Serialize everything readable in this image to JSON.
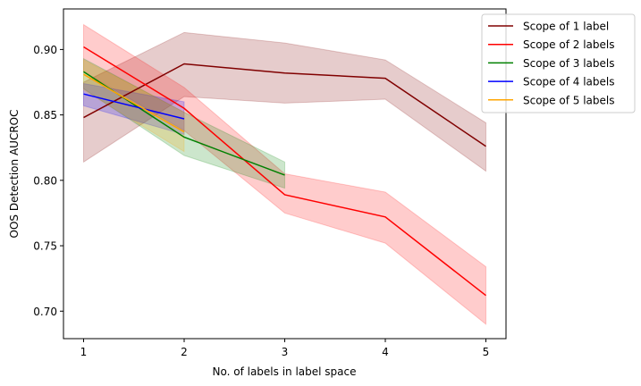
{
  "chart_data": {
    "type": "line",
    "title": "",
    "xlabel": "No. of labels in label space",
    "ylabel": "OOS Detection AUCROC",
    "xlim": [
      0.8,
      5.2
    ],
    "ylim": [
      0.679,
      0.931
    ],
    "xticks": [
      1,
      2,
      3,
      4,
      5
    ],
    "xtick_labels": [
      "1",
      "2",
      "3",
      "4",
      "5"
    ],
    "yticks": [
      0.7,
      0.75,
      0.8,
      0.85,
      0.9
    ],
    "ytick_labels": [
      "0.70",
      "0.75",
      "0.80",
      "0.85",
      "0.90"
    ],
    "grid": false,
    "legend_position": "upper-right-outside",
    "series": [
      {
        "name": "Scope of 1 label",
        "color": "#800000",
        "x": [
          1,
          2,
          3,
          4,
          5
        ],
        "values": [
          0.848,
          0.889,
          0.882,
          0.878,
          0.826
        ],
        "lower": [
          0.814,
          0.864,
          0.859,
          0.862,
          0.807
        ],
        "upper": [
          0.875,
          0.913,
          0.905,
          0.892,
          0.844
        ]
      },
      {
        "name": "Scope of 2 labels",
        "color": "#ff0000",
        "x": [
          1,
          2,
          3,
          4,
          5
        ],
        "values": [
          0.902,
          0.855,
          0.789,
          0.772,
          0.712
        ],
        "lower": [
          0.883,
          0.838,
          0.775,
          0.752,
          0.69
        ],
        "upper": [
          0.919,
          0.871,
          0.805,
          0.791,
          0.734
        ]
      },
      {
        "name": "Scope of 3 labels",
        "color": "#008000",
        "x": [
          1,
          2,
          3
        ],
        "values": [
          0.883,
          0.833,
          0.804
        ],
        "lower": [
          0.87,
          0.819,
          0.794
        ],
        "upper": [
          0.893,
          0.852,
          0.814
        ]
      },
      {
        "name": "Scope of 4 labels",
        "color": "#0000ff",
        "x": [
          1,
          2
        ],
        "values": [
          0.866,
          0.847
        ],
        "lower": [
          0.857,
          0.835
        ],
        "upper": [
          0.874,
          0.86
        ]
      },
      {
        "name": "Scope of 5 labels",
        "color": "#ffa500",
        "x": [
          1,
          2
        ],
        "values": [
          0.881,
          0.837
        ],
        "lower": [
          0.869,
          0.822
        ],
        "upper": [
          0.892,
          0.852
        ]
      }
    ]
  }
}
